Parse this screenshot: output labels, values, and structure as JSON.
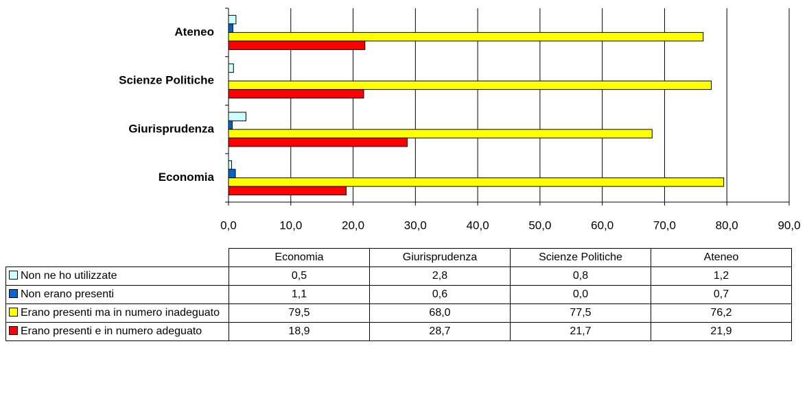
{
  "chart_data": {
    "type": "bar",
    "orientation": "horizontal",
    "categories": [
      "Economia",
      "Giurisprudenza",
      "Scienze Politiche",
      "Ateneo"
    ],
    "series": [
      {
        "name": "Non ne ho utilizzate",
        "color": "#ccffff",
        "values": [
          0.5,
          2.8,
          0.8,
          1.2
        ],
        "value_labels": [
          "0,5",
          "2,8",
          "0,8",
          "1,2"
        ]
      },
      {
        "name": "Non erano presenti",
        "color": "#0066cc",
        "values": [
          1.1,
          0.6,
          0.0,
          0.7
        ],
        "value_labels": [
          "1,1",
          "0,6",
          "0,0",
          "0,7"
        ]
      },
      {
        "name": "Erano presenti ma in numero inadeguato",
        "color": "#ffff00",
        "values": [
          79.5,
          68.0,
          77.5,
          76.2
        ],
        "value_labels": [
          "79,5",
          "68,0",
          "77,5",
          "76,2"
        ]
      },
      {
        "name": "Erano presenti e in numero adeguato",
        "color": "#ff0000",
        "values": [
          18.9,
          28.7,
          21.7,
          21.9
        ],
        "value_labels": [
          "18,9",
          "28,7",
          "21,7",
          "21,9"
        ]
      }
    ],
    "xlim": [
      0,
      90
    ],
    "xticks": [
      {
        "value": 0,
        "label": "0,0"
      },
      {
        "value": 10,
        "label": "10,0"
      },
      {
        "value": 20,
        "label": "20,0"
      },
      {
        "value": 30,
        "label": "30,0"
      },
      {
        "value": 40,
        "label": "40,0"
      },
      {
        "value": 50,
        "label": "50,0"
      },
      {
        "value": 60,
        "label": "60,0"
      },
      {
        "value": 70,
        "label": "70,0"
      },
      {
        "value": 80,
        "label": "80,0"
      },
      {
        "value": 90,
        "label": "90,0"
      }
    ],
    "grid": true
  }
}
